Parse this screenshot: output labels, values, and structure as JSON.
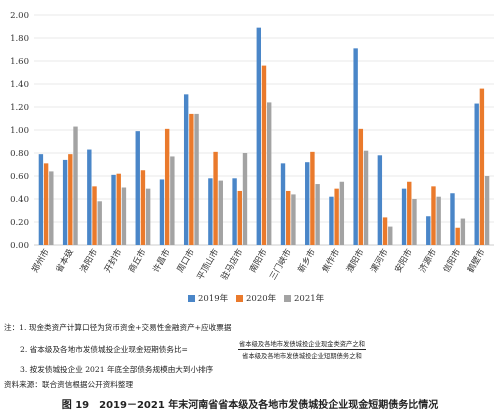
{
  "chart_data": {
    "type": "bar",
    "categories": [
      "郑州市",
      "省本级",
      "洛阳市",
      "开封市",
      "商丘市",
      "许昌市",
      "周口市",
      "平顶山市",
      "驻马店市",
      "南阳市",
      "三门峡市",
      "新乡市",
      "焦作市",
      "濮阳市",
      "漯河市",
      "安阳市",
      "济源市",
      "信阳市",
      "鹤壁市"
    ],
    "series": [
      {
        "name": "2019年",
        "color": "#4a86c8",
        "values": [
          0.79,
          0.74,
          0.83,
          0.61,
          0.99,
          0.57,
          1.31,
          0.58,
          0.58,
          1.89,
          0.71,
          0.72,
          0.42,
          1.71,
          0.78,
          0.49,
          0.25,
          0.45,
          1.23
        ]
      },
      {
        "name": "2020年",
        "color": "#ea7a2c",
        "values": [
          0.71,
          0.79,
          0.51,
          0.62,
          0.65,
          1.01,
          1.14,
          0.81,
          0.47,
          1.56,
          0.47,
          0.81,
          0.49,
          1.01,
          0.24,
          0.55,
          0.51,
          0.15,
          1.36
        ]
      },
      {
        "name": "2021年",
        "color": "#a3a3a3",
        "values": [
          0.64,
          1.03,
          0.38,
          0.5,
          0.49,
          0.77,
          1.14,
          0.56,
          0.8,
          1.24,
          0.44,
          0.53,
          0.55,
          0.82,
          0.16,
          0.4,
          0.42,
          0.23,
          0.6
        ]
      }
    ],
    "yticks": [
      "0.00",
      "0.20",
      "0.40",
      "0.60",
      "0.80",
      "1.00",
      "1.20",
      "1.40",
      "1.60",
      "1.80",
      "2.00"
    ],
    "ylim": [
      0,
      2.0
    ],
    "grid": true,
    "legend_position": "bottom"
  },
  "notes": {
    "line1": "注：1. 现金类资产计算口径为货币资金+交易性金融资产+应收票据",
    "line2_prefix": "2. 省本级及各地市发债城投企业现金短期债务比=",
    "line2_numerator": "省本级及各地市发债城投企业现金类资产之和",
    "line2_denominator": "省本级及各地市发债城投企业短期债务之和",
    "line3": "3. 按发债城投企业 2021 年底全部债务规模由大到小排序",
    "source": "资料来源：联合资信根据公开资料整理"
  },
  "caption": "图 19　2019－2021 年末河南省省本级及各地市发债城投企业现金短期债务比情况"
}
